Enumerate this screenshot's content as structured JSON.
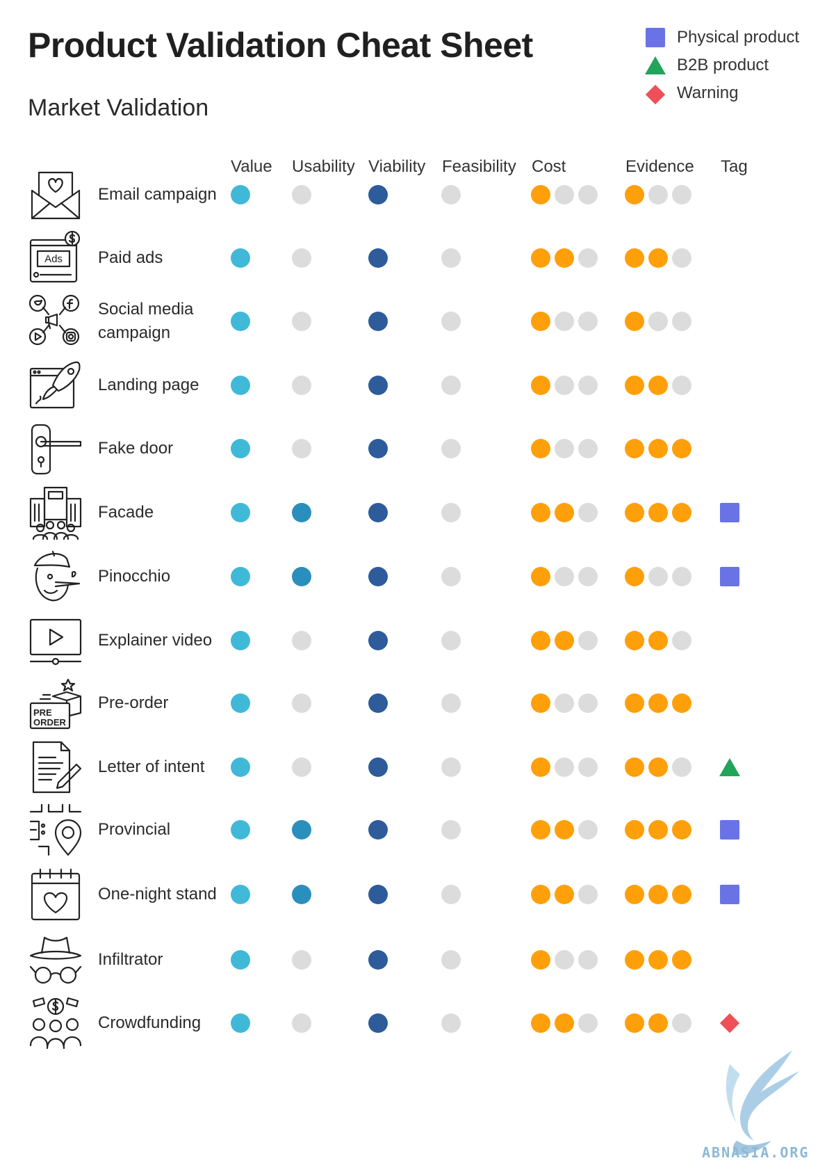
{
  "title": "Product Validation Cheat Sheet",
  "subtitle": "Market Validation",
  "legend": [
    {
      "label": "Physical product",
      "marker": "square",
      "color": "#6a73e6"
    },
    {
      "label": "B2B product",
      "marker": "triangle",
      "color": "#22a45a"
    },
    {
      "label": "Warning",
      "marker": "diamond",
      "color": "#ef4f56"
    }
  ],
  "columns": [
    "Value",
    "Usability",
    "Viability",
    "Feasibility",
    "Cost",
    "Evidence",
    "Tag"
  ],
  "colors": {
    "value": "#40b9d8",
    "usability": "#2b8fbe",
    "viability": "#2e5b9a",
    "inactive": "#dcdcdc",
    "rating": "#ff9f0a"
  },
  "rows": [
    {
      "label": "Email campaign",
      "icon": "envelope-heart-icon",
      "value": true,
      "usability": false,
      "viability": true,
      "feasibility": false,
      "cost": 1,
      "evidence": 1,
      "tag": ""
    },
    {
      "label": "Paid ads",
      "icon": "ads-screen-icon",
      "value": true,
      "usability": false,
      "viability": true,
      "feasibility": false,
      "cost": 2,
      "evidence": 2,
      "tag": ""
    },
    {
      "label": "Social media campaign",
      "icon": "social-media-icon",
      "value": true,
      "usability": false,
      "viability": true,
      "feasibility": false,
      "cost": 1,
      "evidence": 1,
      "tag": ""
    },
    {
      "label": "Landing page",
      "icon": "rocket-browser-icon",
      "value": true,
      "usability": false,
      "viability": true,
      "feasibility": false,
      "cost": 1,
      "evidence": 2,
      "tag": ""
    },
    {
      "label": "Fake door",
      "icon": "door-handle-icon",
      "value": true,
      "usability": false,
      "viability": true,
      "feasibility": false,
      "cost": 1,
      "evidence": 3,
      "tag": ""
    },
    {
      "label": "Facade",
      "icon": "building-crowd-icon",
      "value": true,
      "usability": true,
      "viability": true,
      "feasibility": false,
      "cost": 2,
      "evidence": 3,
      "tag": "square"
    },
    {
      "label": "Pinocchio",
      "icon": "pinocchio-icon",
      "value": true,
      "usability": true,
      "viability": true,
      "feasibility": false,
      "cost": 1,
      "evidence": 1,
      "tag": "square"
    },
    {
      "label": "Explainer video",
      "icon": "video-player-icon",
      "value": true,
      "usability": false,
      "viability": true,
      "feasibility": false,
      "cost": 2,
      "evidence": 2,
      "tag": ""
    },
    {
      "label": "Pre-order",
      "icon": "pre-order-box-icon",
      "value": true,
      "usability": false,
      "viability": true,
      "feasibility": false,
      "cost": 1,
      "evidence": 3,
      "tag": ""
    },
    {
      "label": "Letter of intent",
      "icon": "document-pen-icon",
      "value": true,
      "usability": false,
      "viability": true,
      "feasibility": false,
      "cost": 1,
      "evidence": 2,
      "tag": "triangle"
    },
    {
      "label": "Provincial",
      "icon": "map-pin-icon",
      "value": true,
      "usability": true,
      "viability": true,
      "feasibility": false,
      "cost": 2,
      "evidence": 3,
      "tag": "square"
    },
    {
      "label": "One-night stand",
      "icon": "calendar-heart-icon",
      "value": true,
      "usability": true,
      "viability": true,
      "feasibility": false,
      "cost": 2,
      "evidence": 3,
      "tag": "square"
    },
    {
      "label": "Infiltrator",
      "icon": "spy-hat-glasses-icon",
      "value": true,
      "usability": false,
      "viability": true,
      "feasibility": false,
      "cost": 1,
      "evidence": 3,
      "tag": ""
    },
    {
      "label": "Crowdfunding",
      "icon": "crowd-money-icon",
      "value": true,
      "usability": false,
      "viability": true,
      "feasibility": false,
      "cost": 2,
      "evidence": 2,
      "tag": "diamond"
    }
  ],
  "watermark": {
    "text": "ABNASIA.ORG"
  }
}
